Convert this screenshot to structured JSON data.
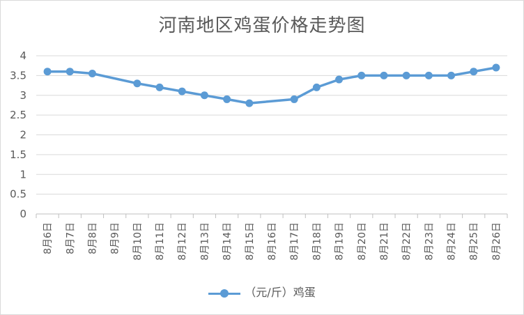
{
  "chart_data": {
    "type": "line",
    "title": "河南地区鸡蛋价格走势图",
    "categories": [
      "8月6日",
      "8月7日",
      "8月8日",
      "8月9日",
      "8月10日",
      "8月11日",
      "8月12日",
      "8月13日",
      "8月14日",
      "8月15日",
      "8月16日",
      "8月17日",
      "8月18日",
      "8月19日",
      "8月20日",
      "8月21日",
      "8月22日",
      "8月23日",
      "8月24日",
      "8月25日",
      "8月26日"
    ],
    "series": [
      {
        "name": "（元/斤）鸡蛋",
        "color": "#5b9bd5",
        "values": [
          3.6,
          3.6,
          3.55,
          null,
          3.3,
          3.2,
          3.1,
          3.0,
          2.9,
          2.8,
          null,
          2.9,
          3.2,
          3.4,
          3.5,
          3.5,
          3.5,
          3.5,
          3.5,
          3.6,
          3.7
        ]
      }
    ],
    "y_ticks": [
      "4",
      "3.5",
      "3",
      "2.5",
      "2",
      "1.5",
      "1",
      "0.5",
      "0"
    ],
    "ylim": [
      0,
      4
    ],
    "xlabel": "",
    "ylabel": "",
    "grid": true,
    "legend_position": "bottom"
  }
}
